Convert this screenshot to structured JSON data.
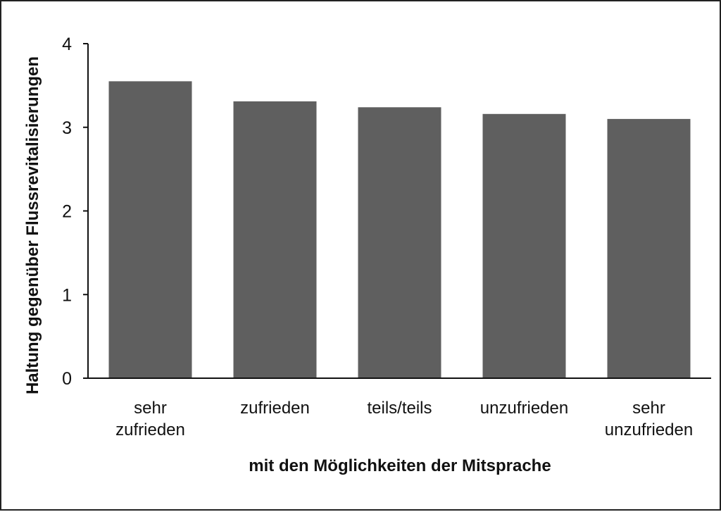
{
  "chart_data": {
    "type": "bar",
    "categories": [
      [
        "sehr",
        "zufrieden"
      ],
      [
        "zufrieden"
      ],
      [
        "teils/teils"
      ],
      [
        "unzufrieden"
      ],
      [
        "sehr",
        "unzufrieden"
      ]
    ],
    "values": [
      3.55,
      3.31,
      3.24,
      3.16,
      3.1
    ],
    "xlabel": "mit den Möglichkeiten der Mitsprache",
    "ylabel": "Haltung gegenüber Flussrevitalisierungen",
    "ylim": [
      0,
      4
    ],
    "yticks": [
      0,
      1,
      2,
      3,
      4
    ],
    "bar_color": "#5f5f5f",
    "grid": false
  }
}
